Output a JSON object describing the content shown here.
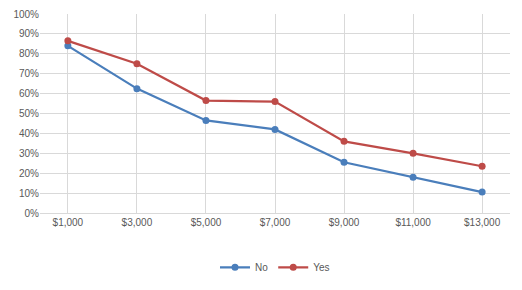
{
  "chart_data": {
    "type": "line",
    "categories": [
      "$1,000",
      "$3,000",
      "$5,000",
      "$7,000",
      "$9,000",
      "$11,000",
      "$13,000"
    ],
    "series": [
      {
        "name": "No",
        "color": "#4a7ebb",
        "marker": "circle",
        "values": [
          84,
          62.5,
          46.5,
          42,
          25.5,
          18,
          10.5
        ]
      },
      {
        "name": "Yes",
        "color": "#be4b48",
        "marker": "circle",
        "values": [
          86.5,
          75,
          56.5,
          56,
          36,
          30,
          23.5
        ]
      }
    ],
    "ylim": [
      0,
      100
    ],
    "yticks": [
      {
        "value": 0,
        "label": "0%"
      },
      {
        "value": 10,
        "label": "10%"
      },
      {
        "value": 20,
        "label": "20%"
      },
      {
        "value": 30,
        "label": "30%"
      },
      {
        "value": 40,
        "label": "40%"
      },
      {
        "value": 50,
        "label": "50%"
      },
      {
        "value": 60,
        "label": "60%"
      },
      {
        "value": 70,
        "label": "70%"
      },
      {
        "value": 80,
        "label": "80%"
      },
      {
        "value": 90,
        "label": "90%"
      },
      {
        "value": 100,
        "label": "100%"
      }
    ],
    "grid": true,
    "legend": "bottom"
  }
}
